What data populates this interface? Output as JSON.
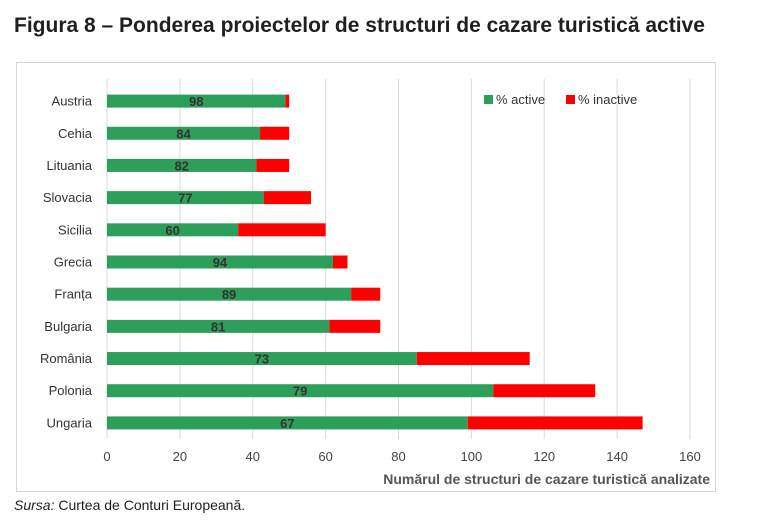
{
  "figure": {
    "title": "Figura 8 – Ponderea proiectelor de structuri de cazare turistică active",
    "source_label": "Sursa:",
    "source_text": " Curtea de Conturi Europeană."
  },
  "chart_data": {
    "type": "bar",
    "orientation": "horizontal",
    "stacked": true,
    "categories": [
      "Austria",
      "Cehia",
      "Lituania",
      "Slovacia",
      "Sicilia",
      "Grecia",
      "Franța",
      "Bulgaria",
      "România",
      "Polonia",
      "Ungaria"
    ],
    "series": [
      {
        "name": "% active",
        "color": "#2e9e5b",
        "values": [
          49,
          42,
          41,
          43,
          36,
          62,
          67,
          61,
          85,
          106,
          99
        ]
      },
      {
        "name": "% inactive",
        "color": "#ff0000",
        "values": [
          1,
          8,
          9,
          13,
          24,
          4,
          8,
          14,
          31,
          28,
          48
        ]
      }
    ],
    "data_labels": [
      "98",
      "84",
      "82",
      "77",
      "60",
      "94",
      "89",
      "81",
      "73",
      "79",
      "67"
    ],
    "xlabel": "Numărul de structuri de cazare turistică analizate",
    "ylabel": "",
    "xlim": [
      0,
      160
    ],
    "xticks": [
      "0",
      "20",
      "40",
      "60",
      "80",
      "100",
      "120",
      "140",
      "160"
    ],
    "grid": "vertical",
    "legend_position": "top-right"
  }
}
